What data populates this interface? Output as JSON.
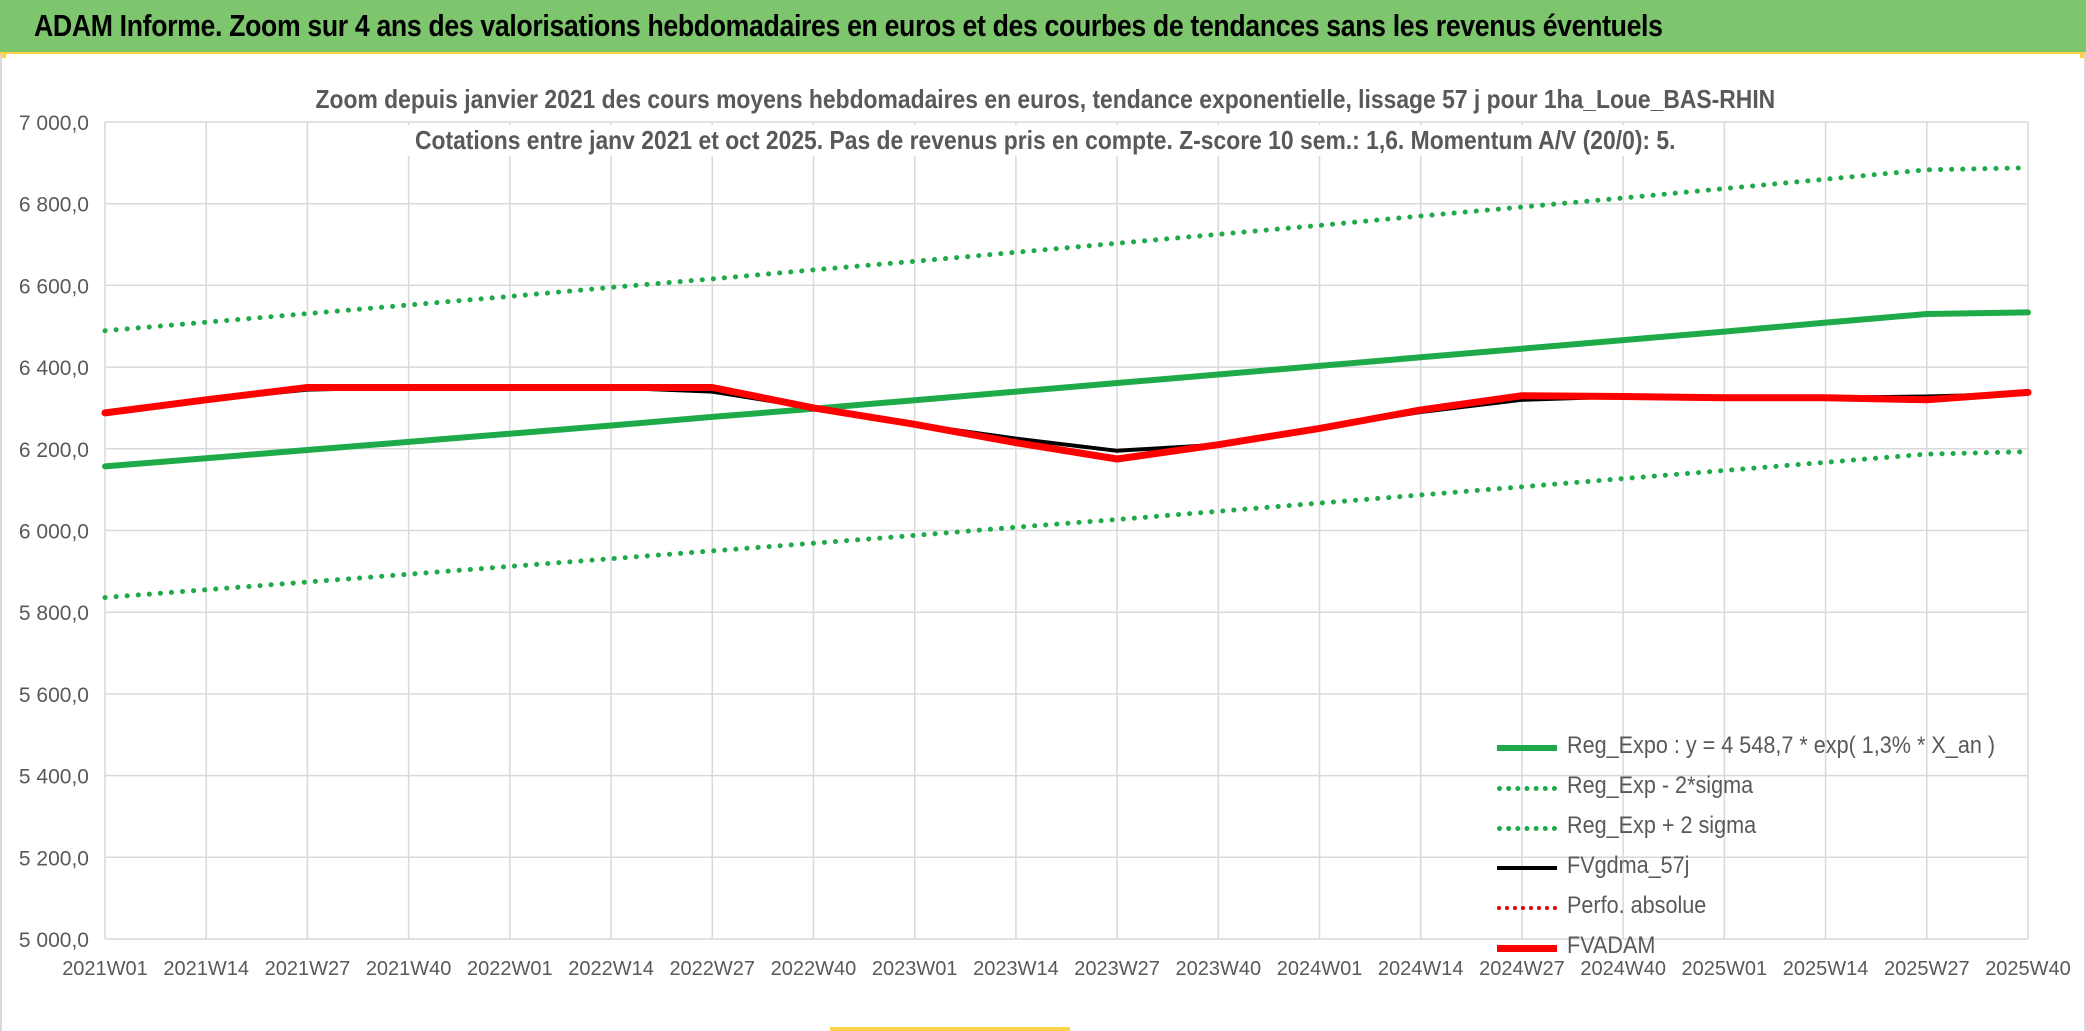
{
  "banner": {
    "title": "ADAM Informe. Zoom sur 4 ans des valorisations hebdomadaires en euros et des courbes de tendances sans les revenus éventuels"
  },
  "chart_data": {
    "type": "line",
    "title": "Zoom depuis janvier 2021 des cours moyens hebdomadaires en euros, tendance exponentielle, lissage 57 j pour 1ha_Loue_BAS-RHIN",
    "subtitle": "Cotations entre janv 2021 et oct 2025. Pas de revenus pris en compte. Z-score 10 sem.: 1,6. Momentum A/V (20/0): 5.",
    "xlabel": "",
    "ylabel": "",
    "ylim": [
      5000,
      7000
    ],
    "y_ticks": [
      5000,
      5200,
      5400,
      5600,
      5800,
      6000,
      6200,
      6400,
      6600,
      6800,
      7000
    ],
    "y_tick_labels": [
      "5 000,0",
      "5 200,0",
      "5 400,0",
      "5 600,0",
      "5 800,0",
      "6 000,0",
      "6 200,0",
      "6 400,0",
      "6 600,0",
      "6 800,0",
      "7 000,0"
    ],
    "categories": [
      "2021W01",
      "2021W14",
      "2021W27",
      "2021W40",
      "2022W01",
      "2022W14",
      "2022W27",
      "2022W40",
      "2023W01",
      "2023W14",
      "2023W27",
      "2023W40",
      "2024W01",
      "2024W14",
      "2024W27",
      "2024W40",
      "2025W01",
      "2025W14",
      "2025W27",
      "2025W40"
    ],
    "grid": true,
    "legend_position": "bottom-right",
    "series": [
      {
        "name": "Reg_Expo : y = 4 548,7 * exp( 1,3% *  X_an )",
        "color": "#1faa4a",
        "style": "solid",
        "width": 6,
        "values": [
          6157,
          6177,
          6197,
          6217,
          6237,
          6257,
          6278,
          6298,
          6319,
          6340,
          6361,
          6382,
          6403,
          6424,
          6445,
          6466,
          6487,
          6509,
          6530,
          6534
        ]
      },
      {
        "name": "Reg_Exp - 2*sigma",
        "color": "#1faa4a",
        "style": "dotted",
        "width": 5,
        "values": [
          5836,
          5855,
          5874,
          5893,
          5912,
          5931,
          5950,
          5969,
          5988,
          6008,
          6027,
          6047,
          6067,
          6087,
          6107,
          6127,
          6147,
          6167,
          6187,
          6193
        ]
      },
      {
        "name": "Reg_Exp + 2 sigma",
        "color": "#1faa4a",
        "style": "dotted",
        "width": 5,
        "values": [
          6489,
          6510,
          6531,
          6552,
          6573,
          6595,
          6616,
          6638,
          6659,
          6681,
          6703,
          6725,
          6747,
          6770,
          6792,
          6814,
          6837,
          6860,
          6883,
          6888
        ]
      },
      {
        "name": "FVgdma_57j",
        "color": "#000000",
        "style": "solid",
        "width": 4,
        "values": [
          6288,
          6320,
          6345,
          6350,
          6350,
          6350,
          6340,
          6300,
          6260,
          6225,
          6195,
          6210,
          6250,
          6290,
          6320,
          6328,
          6326,
          6325,
          6328,
          6335
        ]
      },
      {
        "name": "Perfo. absolue",
        "color": "#e00000",
        "style": "dotted",
        "width": 4,
        "values": [
          6288,
          6320,
          6350,
          6350,
          6350,
          6350,
          6350,
          6300,
          6260,
          6215,
          6175,
          6210,
          6250,
          6295,
          6330,
          6328,
          6325,
          6325,
          6320,
          6338
        ]
      },
      {
        "name": "FVADAM",
        "color": "#ff0000",
        "style": "solid",
        "width": 7,
        "values": [
          6288,
          6320,
          6350,
          6350,
          6350,
          6350,
          6350,
          6300,
          6260,
          6215,
          6175,
          6210,
          6250,
          6295,
          6330,
          6328,
          6325,
          6325,
          6320,
          6338
        ]
      }
    ]
  }
}
